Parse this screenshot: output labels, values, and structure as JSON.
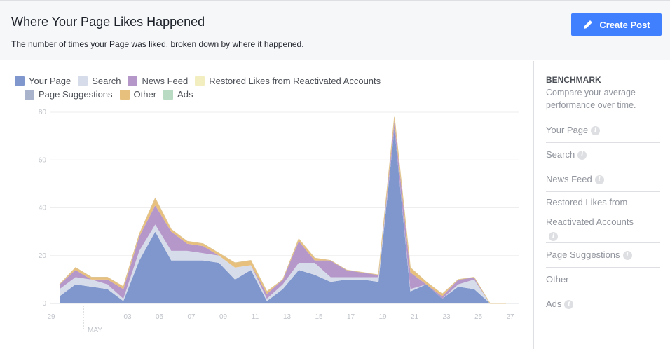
{
  "header": {
    "title": "Where Your Page Likes Happened",
    "subtitle": "The number of times your Page was liked, broken down by where it happened.",
    "create_post_label": "Create Post"
  },
  "colors": {
    "accent": "#4080ff",
    "your_page": "#7f97cc",
    "search": "#d7dcea",
    "news_feed": "#b597c9",
    "restored": "#f2eec0",
    "page_suggestions": "#a9b4cc",
    "other": "#e8c07e",
    "ads": "#b9dbc4"
  },
  "chart_data": {
    "type": "area",
    "stacked": true,
    "title": "",
    "xlabel": "",
    "ylabel": "",
    "ylim": [
      0,
      80
    ],
    "y_ticks": [
      "0",
      "20",
      "40",
      "60",
      "80"
    ],
    "x_ticks": [
      "29",
      "03",
      "05",
      "07",
      "09",
      "11",
      "13",
      "15",
      "17",
      "19",
      "21",
      "23",
      "25",
      "27"
    ],
    "month_label": "MAY",
    "x": [
      "Apr 29",
      "Apr 30",
      "May 01",
      "May 02",
      "May 03",
      "May 04",
      "May 05",
      "May 06",
      "May 07",
      "May 08",
      "May 09",
      "May 10",
      "May 11",
      "May 12",
      "May 13",
      "May 14",
      "May 15",
      "May 16",
      "May 17",
      "May 18",
      "May 19",
      "May 20",
      "May 21",
      "May 22",
      "May 23",
      "May 24",
      "May 25",
      "May 26",
      "May 27"
    ],
    "series": [
      {
        "name": "Your Page",
        "color": "#7f97cc",
        "values": [
          3,
          8,
          7,
          6,
          1,
          18,
          30,
          18,
          18,
          18,
          17,
          10,
          14,
          1,
          6,
          14,
          12,
          9,
          10,
          10,
          9,
          73,
          5,
          8,
          2,
          7,
          6,
          0,
          0
        ]
      },
      {
        "name": "Search",
        "color": "#d7dcea",
        "values": [
          3,
          3,
          3,
          2,
          1,
          4,
          3,
          4,
          4,
          3,
          3,
          5,
          2,
          1,
          2,
          3,
          5,
          2,
          1,
          1,
          2,
          0,
          1,
          0,
          0,
          1,
          4,
          0,
          0
        ]
      },
      {
        "name": "News Feed",
        "color": "#b597c9",
        "values": [
          2,
          3,
          0,
          2,
          4,
          6,
          8,
          8,
          3,
          3,
          0,
          0,
          0,
          2,
          2,
          9,
          1,
          7,
          3,
          2,
          1,
          3,
          7,
          0,
          1,
          2,
          1,
          0,
          0
        ]
      },
      {
        "name": "Restored Likes from Reactivated Accounts",
        "color": "#f2eec0",
        "values": [
          0,
          0,
          0,
          0,
          0,
          0,
          0,
          0,
          0,
          0,
          0,
          0,
          0,
          0,
          0,
          0,
          0,
          0,
          0,
          0,
          0,
          0,
          0,
          0,
          0,
          0,
          0,
          0,
          0
        ]
      },
      {
        "name": "Page Suggestions",
        "color": "#a9b4cc",
        "values": [
          0,
          0,
          0,
          0,
          0,
          0,
          0,
          0,
          0,
          0,
          0,
          0,
          0,
          0,
          0,
          0,
          0,
          0,
          0,
          0,
          0,
          0,
          0,
          0,
          0,
          0,
          0,
          0,
          0
        ]
      },
      {
        "name": "Other",
        "color": "#e8c07e",
        "values": [
          0,
          1,
          1,
          1,
          1,
          1,
          3,
          1,
          1,
          1,
          1,
          2,
          2,
          1,
          0,
          1,
          1,
          0,
          0,
          0,
          0,
          2,
          2,
          1,
          1,
          0,
          0,
          0,
          0
        ]
      },
      {
        "name": "Ads",
        "color": "#b9dbc4",
        "values": [
          0,
          0,
          0,
          0,
          0,
          0,
          0,
          0,
          0,
          0,
          0,
          0,
          0,
          0,
          0,
          0,
          0,
          0,
          0,
          0,
          0,
          0,
          0,
          0,
          0,
          0,
          0,
          0,
          0
        ]
      }
    ],
    "legend_rows": [
      [
        "Your Page",
        "Search",
        "News Feed",
        "Restored Likes from Reactivated Accounts"
      ],
      [
        "Page Suggestions",
        "Other",
        "Ads"
      ]
    ]
  },
  "sidebar": {
    "title": "BENCHMARK",
    "description": "Compare your average performance over time.",
    "items": [
      {
        "label": "Your Page",
        "info": true
      },
      {
        "label": "Search",
        "info": true
      },
      {
        "label": "News Feed",
        "info": true
      },
      {
        "label": "Restored Likes from Reactivated Accounts",
        "info": true
      },
      {
        "label": "Page Suggestions",
        "info": true
      },
      {
        "label": "Other",
        "info": false
      },
      {
        "label": "Ads",
        "info": true
      }
    ]
  }
}
